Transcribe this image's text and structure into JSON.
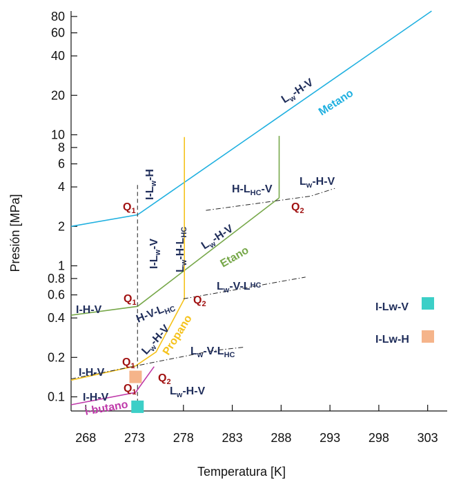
{
  "chart_data": {
    "type": "line",
    "xlabel": "Temperatura [K]",
    "ylabel": "Presión [MPa]",
    "y_scale": "log",
    "xlim": [
      266.5,
      305
    ],
    "ylim": [
      0.078,
      88
    ],
    "x_ticks": [
      "268",
      "273",
      "278",
      "283",
      "288",
      "293",
      "298",
      "303"
    ],
    "x_tick_values": [
      268,
      273,
      278,
      283,
      288,
      293,
      298,
      303
    ],
    "y_ticks": [
      "80",
      "60",
      "40",
      "20",
      "10",
      "8",
      "6",
      "4",
      "2",
      "1",
      "0.8",
      "0.6",
      "0.4",
      "0.2",
      "0.1"
    ],
    "y_tick_values": [
      80,
      60,
      40,
      20,
      10,
      8,
      6,
      4,
      2,
      1,
      0.8,
      0.6,
      0.4,
      0.2,
      0.1
    ],
    "grid": false,
    "series": [
      {
        "name": "Metano",
        "color": "#1fb0e0",
        "style": "solid",
        "x": [
          266.5,
          273.3,
          303.4
        ],
        "y": [
          2.0,
          2.45,
          88
        ]
      },
      {
        "name": "Etano",
        "color": "#77a84a",
        "style": "solid",
        "x": [
          266.5,
          273.3,
          287.8
        ],
        "y": [
          0.42,
          0.49,
          3.3
        ]
      },
      {
        "style": "solid",
        "color": "#77a84a",
        "x": [
          287.8,
          287.8
        ],
        "y": [
          3.3,
          9.8
        ]
      },
      {
        "name": "Propano",
        "color": "#f5c21b",
        "style": "solid",
        "x": [
          266.5,
          273.1,
          275.2,
          278.1
        ],
        "y": [
          0.134,
          0.172,
          0.22,
          0.56
        ]
      },
      {
        "style": "solid",
        "color": "#f5c21b",
        "x": [
          278.1,
          278.1
        ],
        "y": [
          0.56,
          9.6
        ]
      },
      {
        "name": "i-butano",
        "color": "#bf3aaa",
        "style": "solid",
        "x": [
          266.5,
          273.1,
          275.0
        ],
        "y": [
          0.087,
          0.108,
          0.17
        ]
      },
      {
        "style": "dashed",
        "color": "#444444",
        "x": [
          273.3,
          273.3
        ],
        "y": [
          0.09,
          4.2
        ]
      },
      {
        "style": "dashdot",
        "color": "#222222",
        "x": [
          280.3,
          291.0,
          293.5
        ],
        "y": [
          2.65,
          3.4,
          3.9
        ]
      },
      {
        "style": "dashdot",
        "color": "#222222",
        "x": [
          278.0,
          283.0,
          288.0,
          290.5
        ],
        "y": [
          0.56,
          0.65,
          0.76,
          0.82
        ]
      },
      {
        "style": "dashdot",
        "color": "#222222",
        "x": [
          266.5,
          271.0,
          276.0,
          281.0,
          284.3
        ],
        "y": [
          0.137,
          0.16,
          0.19,
          0.225,
          0.24
        ]
      }
    ],
    "quadruple_points": [
      {
        "label": "Q",
        "sub": "1",
        "x": 273.3,
        "y": 2.45
      },
      {
        "label": "Q",
        "sub": "2",
        "x": 287.8,
        "y": 3.3
      },
      {
        "label": "Q",
        "sub": "1",
        "x": 273.3,
        "y": 0.49
      },
      {
        "label": "Q",
        "sub": "2",
        "x": 278.1,
        "y": 0.56
      },
      {
        "label": "Q",
        "sub": "1",
        "x": 273.1,
        "y": 0.172
      },
      {
        "label": "Q",
        "sub": "1",
        "x": 273.1,
        "y": 0.108
      },
      {
        "label": "Q",
        "sub": "2",
        "x": 275.0,
        "y": 0.17
      }
    ],
    "region_labels": [
      {
        "base": "L",
        "sub": "w",
        "rest": "-H-V"
      },
      {
        "base": "I-L",
        "sub": "w",
        "rest": "-H"
      },
      {
        "base": "H-L",
        "sub": "HC",
        "rest": "-V"
      },
      {
        "base": "L",
        "sub": "w",
        "rest": "-H-V"
      },
      {
        "base": "L",
        "sub": "w",
        "rest": "-H-V"
      },
      {
        "base": "I-L",
        "sub": "w",
        "rest": "-V"
      },
      {
        "base": "L",
        "sub": "w",
        "rest": "-H-L",
        "sub2": "HC"
      },
      {
        "base": "L",
        "sub": "w",
        "rest": "-V-L",
        "sub2": "HC"
      },
      {
        "base": "I-H-V"
      },
      {
        "base": "H-V-L",
        "sub": "HC"
      },
      {
        "base": "L",
        "sub": "w",
        "rest": "-H-V"
      },
      {
        "base": "L",
        "sub": "w",
        "rest": "-V-L",
        "sub2": "HC"
      },
      {
        "base": "I-H-V"
      },
      {
        "base": "I-H-V"
      },
      {
        "base": "L",
        "sub": "w",
        "rest": "-H-V"
      }
    ],
    "legend": [
      {
        "label": "I-Lw-V",
        "color": "#3ccfc7"
      },
      {
        "label": "I-Lw-H",
        "color": "#f5b48a"
      }
    ],
    "markers": [
      {
        "x": 273.1,
        "y": 0.142,
        "color": "#f5b48a"
      },
      {
        "x": 273.3,
        "y": 0.084,
        "color": "#3ccfc7"
      }
    ]
  }
}
